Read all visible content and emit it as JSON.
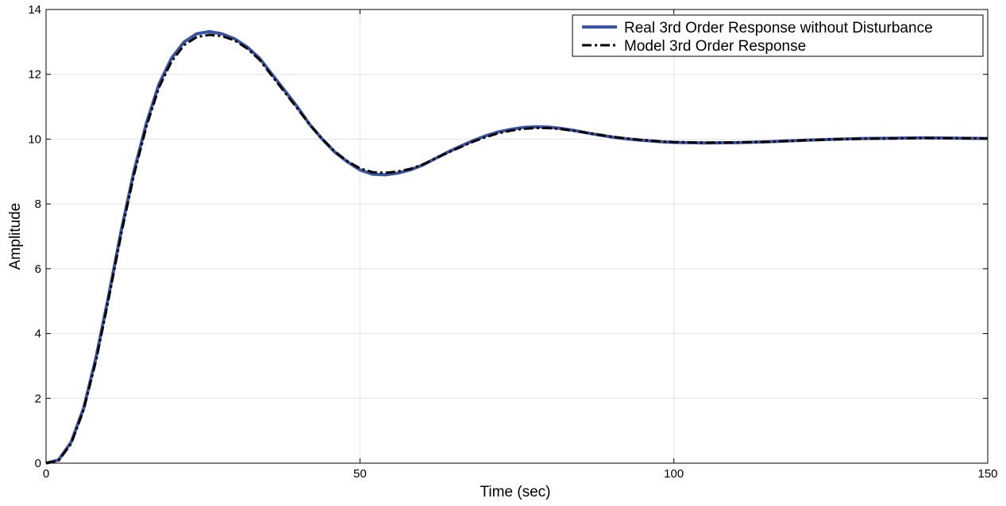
{
  "chart_data": {
    "type": "line",
    "title": "",
    "xlabel": "Time (sec)",
    "ylabel": "Amplitude",
    "xlim": [
      0,
      150
    ],
    "ylim": [
      0,
      14
    ],
    "xticks": [
      0,
      50,
      100,
      150
    ],
    "yticks": [
      0,
      2,
      4,
      6,
      8,
      10,
      12,
      14
    ],
    "grid": true,
    "legend_position": "top-right",
    "series": [
      {
        "name": "Real 3rd Order Response without Disturbance",
        "color": "#3A54A4",
        "line_style": "solid",
        "x": [
          0,
          2,
          4,
          6,
          8,
          10,
          12,
          14,
          16,
          18,
          20,
          22,
          24,
          26,
          28,
          30,
          32,
          34,
          36,
          38,
          40,
          42,
          44,
          46,
          48,
          50,
          52,
          54,
          56,
          58,
          60,
          62,
          64,
          66,
          68,
          70,
          72,
          74,
          76,
          78,
          80,
          82,
          84,
          86,
          88,
          90,
          92,
          94,
          96,
          98,
          100,
          105,
          110,
          115,
          120,
          125,
          130,
          135,
          140,
          145,
          150
        ],
        "y": [
          0,
          0.1,
          0.65,
          1.7,
          3.3,
          5.2,
          7.2,
          9.0,
          10.5,
          11.7,
          12.5,
          13.0,
          13.25,
          13.32,
          13.25,
          13.1,
          12.85,
          12.5,
          12.0,
          11.5,
          11.0,
          10.45,
          10.0,
          9.6,
          9.3,
          9.05,
          8.92,
          8.9,
          8.95,
          9.05,
          9.2,
          9.4,
          9.6,
          9.78,
          9.95,
          10.1,
          10.22,
          10.3,
          10.36,
          10.38,
          10.37,
          10.33,
          10.27,
          10.2,
          10.13,
          10.07,
          10.02,
          9.98,
          9.95,
          9.92,
          9.9,
          9.88,
          9.89,
          9.92,
          9.96,
          9.99,
          10.02,
          10.03,
          10.04,
          10.03,
          10.02
        ]
      },
      {
        "name": "Model 3rd Order Response",
        "color": "#000000",
        "line_style": "dash-dot",
        "x": [
          0,
          2,
          4,
          6,
          8,
          10,
          12,
          14,
          16,
          18,
          20,
          22,
          24,
          26,
          28,
          30,
          32,
          34,
          36,
          38,
          40,
          42,
          44,
          46,
          48,
          50,
          52,
          54,
          56,
          58,
          60,
          62,
          64,
          66,
          68,
          70,
          72,
          74,
          76,
          78,
          80,
          82,
          84,
          86,
          88,
          90,
          92,
          94,
          96,
          98,
          100,
          105,
          110,
          115,
          120,
          125,
          130,
          135,
          140,
          145,
          150
        ],
        "y": [
          0,
          0.08,
          0.6,
          1.65,
          3.2,
          5.1,
          7.1,
          8.9,
          10.4,
          11.6,
          12.4,
          12.9,
          13.15,
          13.22,
          13.18,
          13.05,
          12.8,
          12.45,
          11.95,
          11.45,
          10.95,
          10.45,
          10.0,
          9.62,
          9.32,
          9.1,
          8.98,
          8.96,
          9.0,
          9.08,
          9.22,
          9.4,
          9.58,
          9.75,
          9.92,
          10.06,
          10.18,
          10.26,
          10.32,
          10.34,
          10.34,
          10.31,
          10.26,
          10.2,
          10.14,
          10.08,
          10.03,
          9.99,
          9.96,
          9.93,
          9.91,
          9.89,
          9.9,
          9.92,
          9.96,
          9.99,
          10.01,
          10.02,
          10.03,
          10.03,
          10.02
        ]
      }
    ]
  }
}
